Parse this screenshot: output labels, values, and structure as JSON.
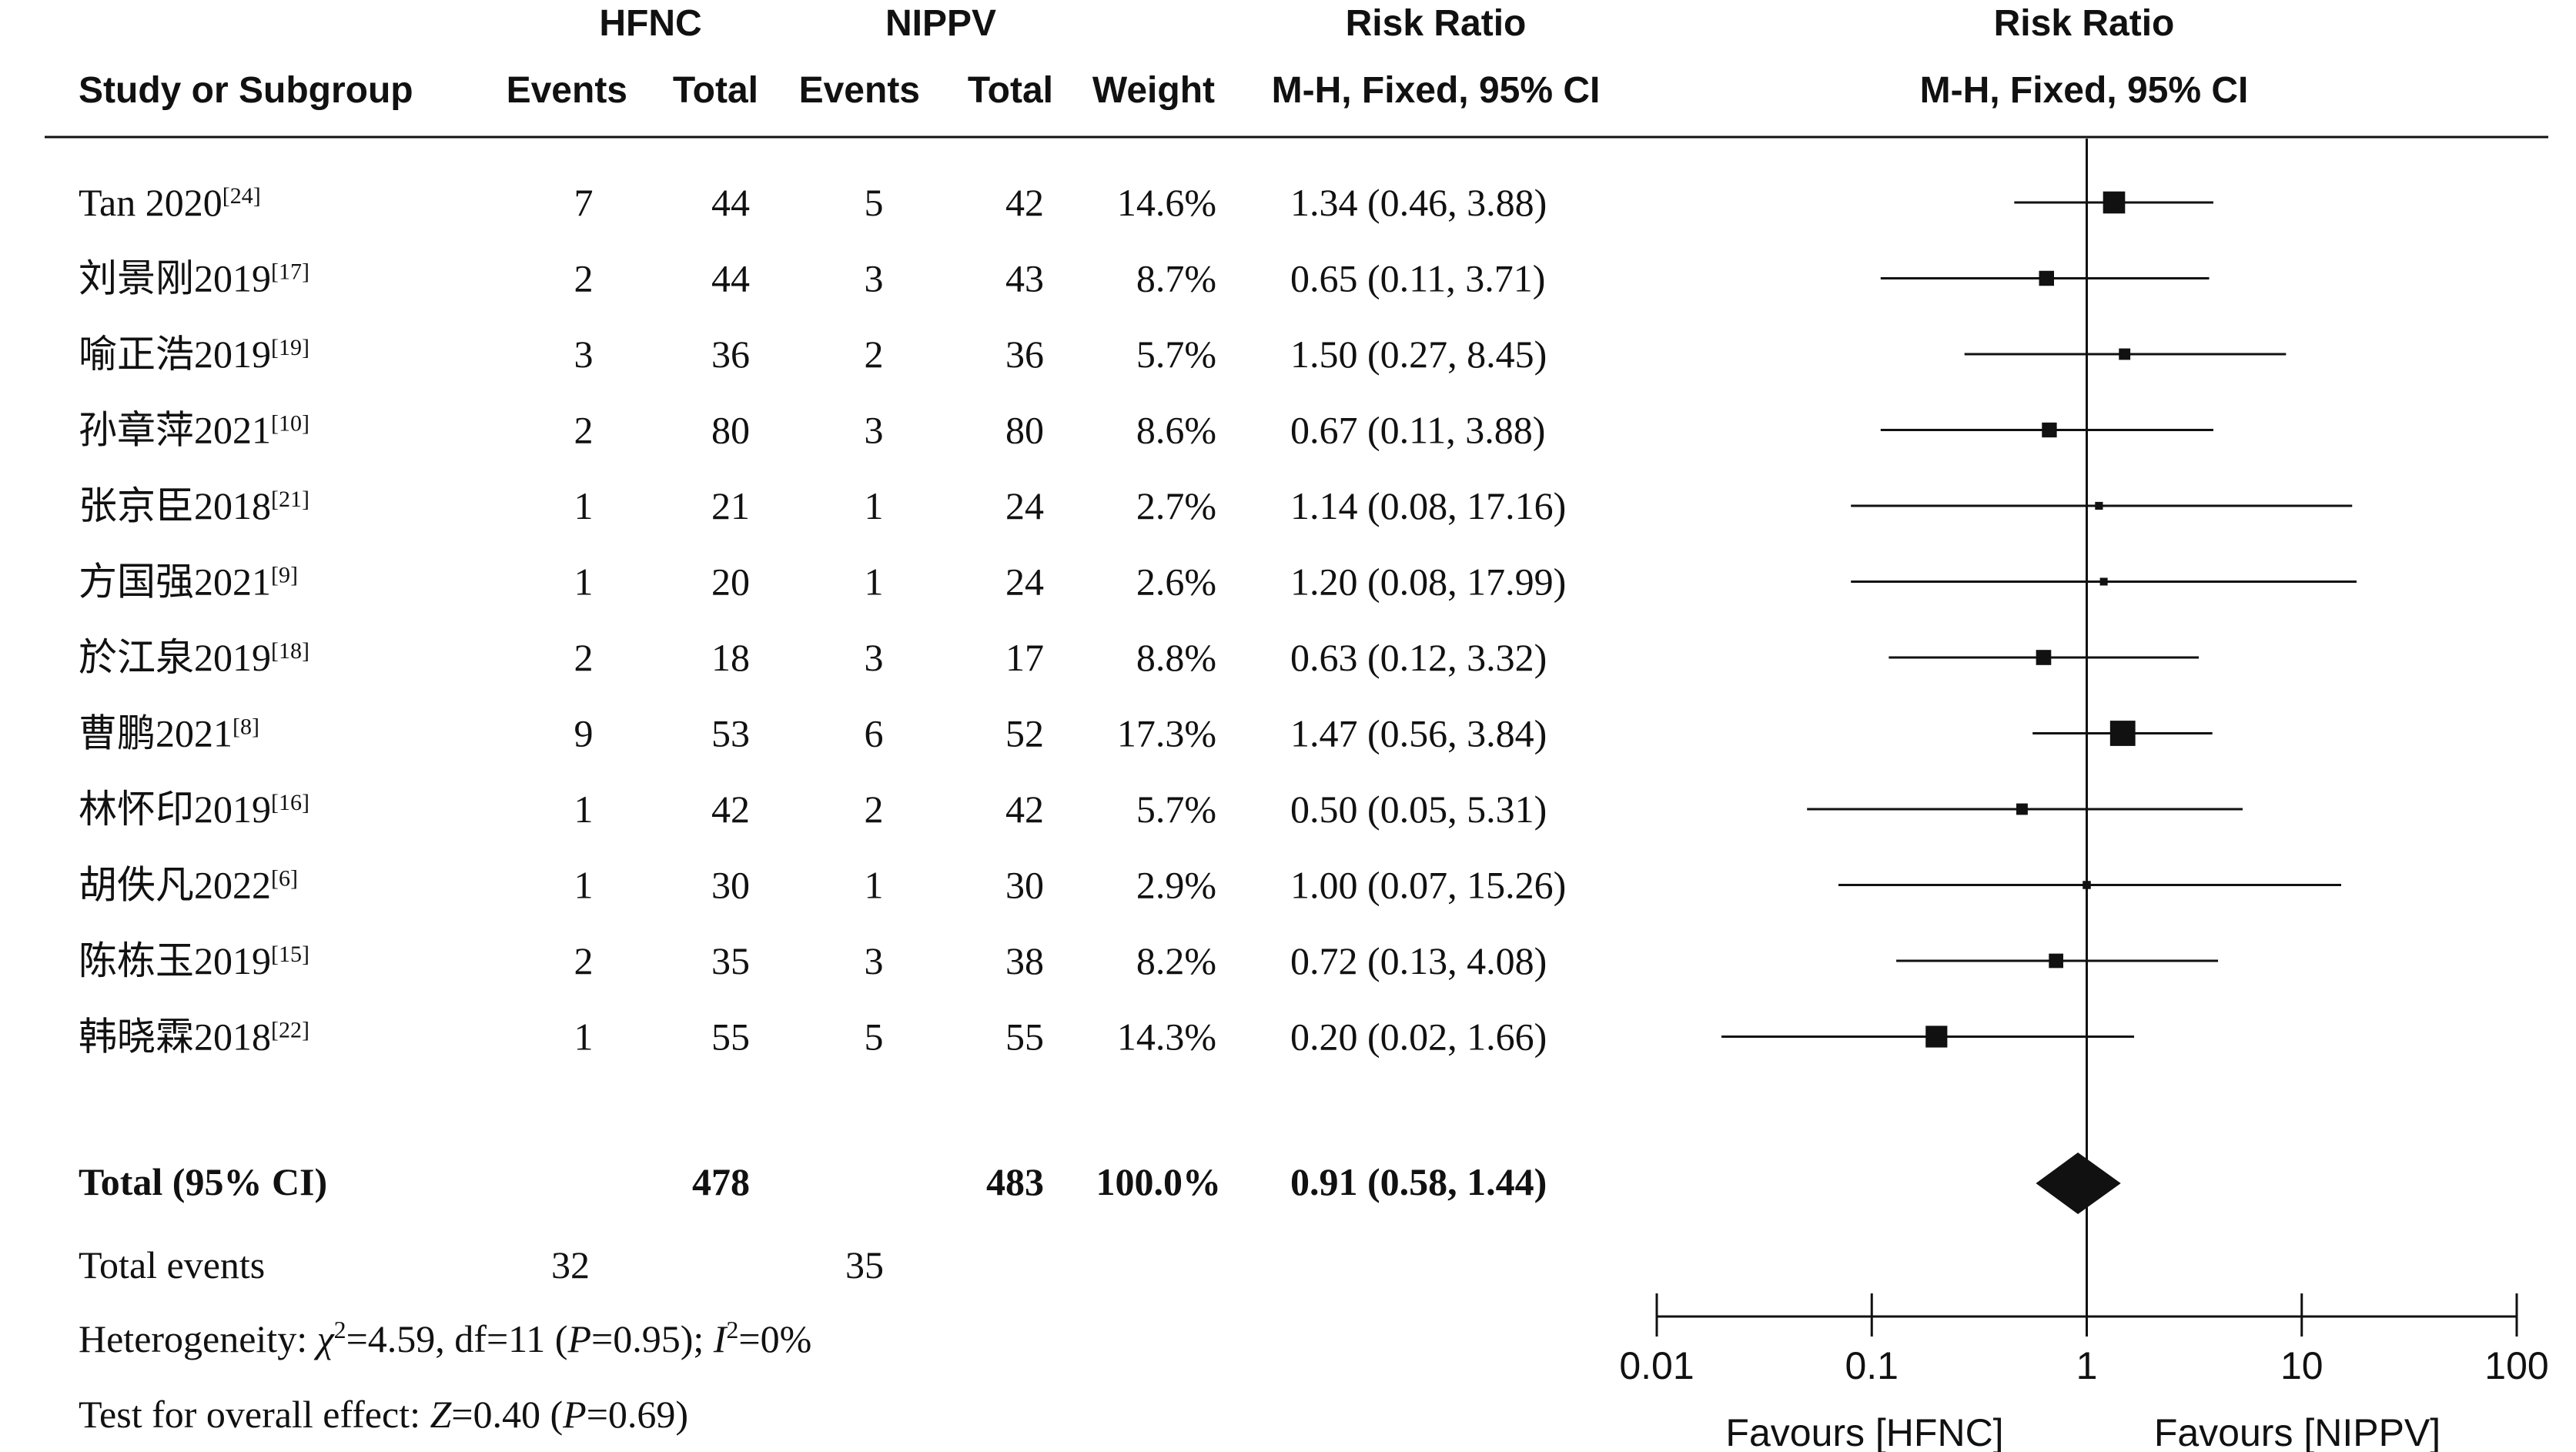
{
  "headers": {
    "group1": "HFNC",
    "group2": "NIPPV",
    "rr_col": "Risk Ratio",
    "rr_plot": "Risk Ratio",
    "study": "Study or Subgroup",
    "events": "Events",
    "total": "Total",
    "weight": "Weight",
    "method_col": "M-H, Fixed, 95% CI",
    "method_plot": "M-H, Fixed, 95% CI"
  },
  "total_row": {
    "label": "Total (95% CI)",
    "hfnc_total": "478",
    "nippv_total": "483",
    "weight": "100.0%",
    "ci": "0.91 (0.58, 1.44)"
  },
  "total_events": {
    "label": "Total events",
    "hfnc": "32",
    "nippv": "35"
  },
  "heterogeneity": {
    "prefix": "Heterogeneity: ",
    "chi_sym": "χ",
    "chi_exp": "2",
    "chi_val": "=4.59, df=11 (",
    "p_sym": "P",
    "p_val": "=0.95); ",
    "i_sym": "I",
    "i_exp": "2",
    "i_val": "=0%"
  },
  "overall_effect": {
    "prefix": "Test for overall effect: ",
    "z_sym": "Z",
    "z_val": "=0.40 (",
    "p_sym": "P",
    "p_val": "=0.69)"
  },
  "axis": {
    "ticks": [
      "0.01",
      "0.1",
      "1",
      "10",
      "100"
    ],
    "favours_left": "Favours [HFNC]",
    "favours_right": "Favours [NIPPV]"
  },
  "chart_data": {
    "type": "forest",
    "scale": "log",
    "xlim": [
      0.01,
      100
    ],
    "reference_line": 1,
    "studies": [
      {
        "name": "Tan 2020",
        "ref": "[24]",
        "hfnc_events": 7,
        "hfnc_total": 44,
        "nippv_events": 5,
        "nippv_total": 42,
        "weight": "14.6%",
        "ci_text": "1.34 (0.46, 3.88)",
        "rr": 1.34,
        "lo": 0.46,
        "hi": 3.88,
        "w": 14.6
      },
      {
        "name": "刘景刚2019",
        "ref": "[17]",
        "hfnc_events": 2,
        "hfnc_total": 44,
        "nippv_events": 3,
        "nippv_total": 43,
        "weight": "8.7%",
        "ci_text": "0.65 (0.11, 3.71)",
        "rr": 0.65,
        "lo": 0.11,
        "hi": 3.71,
        "w": 8.7
      },
      {
        "name": "喻正浩2019",
        "ref": "[19]",
        "hfnc_events": 3,
        "hfnc_total": 36,
        "nippv_events": 2,
        "nippv_total": 36,
        "weight": "5.7%",
        "ci_text": "1.50 (0.27, 8.45)",
        "rr": 1.5,
        "lo": 0.27,
        "hi": 8.45,
        "w": 5.7
      },
      {
        "name": "孙章萍2021",
        "ref": "[10]",
        "hfnc_events": 2,
        "hfnc_total": 80,
        "nippv_events": 3,
        "nippv_total": 80,
        "weight": "8.6%",
        "ci_text": "0.67 (0.11, 3.88)",
        "rr": 0.67,
        "lo": 0.11,
        "hi": 3.88,
        "w": 8.6
      },
      {
        "name": "张京臣2018",
        "ref": "[21]",
        "hfnc_events": 1,
        "hfnc_total": 21,
        "nippv_events": 1,
        "nippv_total": 24,
        "weight": "2.7%",
        "ci_text": "1.14 (0.08, 17.16)",
        "rr": 1.14,
        "lo": 0.08,
        "hi": 17.16,
        "w": 2.7
      },
      {
        "name": "方国强2021",
        "ref": "[9]",
        "hfnc_events": 1,
        "hfnc_total": 20,
        "nippv_events": 1,
        "nippv_total": 24,
        "weight": "2.6%",
        "ci_text": "1.20 (0.08, 17.99)",
        "rr": 1.2,
        "lo": 0.08,
        "hi": 17.99,
        "w": 2.6
      },
      {
        "name": "於江泉2019",
        "ref": "[18]",
        "hfnc_events": 2,
        "hfnc_total": 18,
        "nippv_events": 3,
        "nippv_total": 17,
        "weight": "8.8%",
        "ci_text": "0.63 (0.12, 3.32)",
        "rr": 0.63,
        "lo": 0.12,
        "hi": 3.32,
        "w": 8.8
      },
      {
        "name": "曹鹏2021",
        "ref": "[8]",
        "hfnc_events": 9,
        "hfnc_total": 53,
        "nippv_events": 6,
        "nippv_total": 52,
        "weight": "17.3%",
        "ci_text": "1.47 (0.56, 3.84)",
        "rr": 1.47,
        "lo": 0.56,
        "hi": 3.84,
        "w": 17.3
      },
      {
        "name": "林怀印2019",
        "ref": "[16]",
        "hfnc_events": 1,
        "hfnc_total": 42,
        "nippv_events": 2,
        "nippv_total": 42,
        "weight": "5.7%",
        "ci_text": "0.50 (0.05, 5.31)",
        "rr": 0.5,
        "lo": 0.05,
        "hi": 5.31,
        "w": 5.7
      },
      {
        "name": "胡佚凡2022",
        "ref": "[6]",
        "hfnc_events": 1,
        "hfnc_total": 30,
        "nippv_events": 1,
        "nippv_total": 30,
        "weight": "2.9%",
        "ci_text": "1.00 (0.07, 15.26)",
        "rr": 1.0,
        "lo": 0.07,
        "hi": 15.26,
        "w": 2.9
      },
      {
        "name": "陈栋玉2019",
        "ref": "[15]",
        "hfnc_events": 2,
        "hfnc_total": 35,
        "nippv_events": 3,
        "nippv_total": 38,
        "weight": "8.2%",
        "ci_text": "0.72 (0.13, 4.08)",
        "rr": 0.72,
        "lo": 0.13,
        "hi": 4.08,
        "w": 8.2
      },
      {
        "name": "韩晓霖2018",
        "ref": "[22]",
        "hfnc_events": 1,
        "hfnc_total": 55,
        "nippv_events": 5,
        "nippv_total": 55,
        "weight": "14.3%",
        "ci_text": "0.20 (0.02, 1.66)",
        "rr": 0.2,
        "lo": 0.02,
        "hi": 1.66,
        "w": 14.3
      }
    ],
    "pooled": {
      "rr": 0.91,
      "lo": 0.58,
      "hi": 1.44
    }
  }
}
